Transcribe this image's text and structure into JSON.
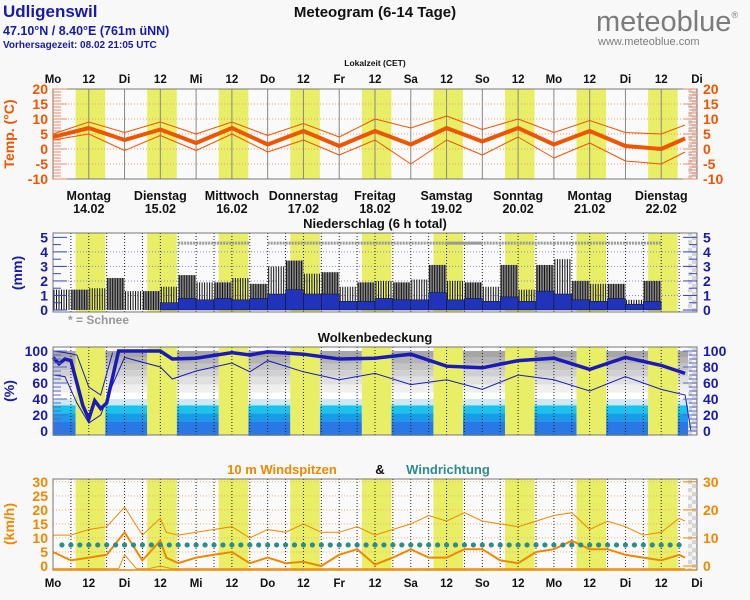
{
  "header": {
    "location": "Udligenswil",
    "coordinates": "47.10°N / 8.40°E (761m üNN)",
    "forecast_time": "Vorhersagezeit: 08.02 21:05 UTC",
    "title": "Meteogram (6-14 Tage)",
    "brand": "meteoblue",
    "brand_mark": "®",
    "brand_url": "www.meteoblue.com",
    "time_zone_label": "Lokalzeit (CET)"
  },
  "time_axis": {
    "top_labels": [
      "Mo",
      "12",
      "Di",
      "12",
      "Mi",
      "12",
      "Do",
      "12",
      "Fr",
      "12",
      "Sa",
      "12",
      "So",
      "12",
      "Mo",
      "12",
      "Di",
      "12",
      "Di"
    ],
    "bottom_labels": [
      "Mo",
      "12",
      "Di",
      "12",
      "Mi",
      "12",
      "Do",
      "12",
      "Fr",
      "12",
      "Sa",
      "12",
      "So",
      "12",
      "Mo",
      "12",
      "Di",
      "12",
      "Di"
    ],
    "days": [
      {
        "name": "Montag",
        "date": "14.02"
      },
      {
        "name": "Dienstag",
        "date": "15.02"
      },
      {
        "name": "Mittwoch",
        "date": "16.02"
      },
      {
        "name": "Donnerstag",
        "date": "17.02"
      },
      {
        "name": "Freitag",
        "date": "18.02"
      },
      {
        "name": "Samstag",
        "date": "19.02"
      },
      {
        "name": "Sonntag",
        "date": "20.02"
      },
      {
        "name": "Montag",
        "date": "21.02"
      },
      {
        "name": "Dienstag",
        "date": "22.02"
      }
    ]
  },
  "colors": {
    "temp": "#ee5500",
    "precip": "#1a1aa8",
    "wind": "#ee8800",
    "winddir": "#2e8b8b",
    "daylight": "#e8ee66",
    "axis_blue": "#1a1aa8"
  },
  "chart_data": [
    {
      "type": "line",
      "title": "",
      "ylabel": "Temp. (°C)",
      "ylim": [
        -10,
        20
      ],
      "yticks": [
        "20",
        "15",
        "10",
        "5",
        "0",
        "-5",
        "-10"
      ],
      "x_unit": "hours from Mo 14.02 00:00",
      "series": [
        {
          "name": "Temperature (mean)",
          "x": [
            0,
            12,
            24,
            36,
            48,
            60,
            72,
            84,
            96,
            108,
            120,
            132,
            144,
            156,
            168,
            180,
            192,
            204,
            212
          ],
          "values": [
            4,
            7,
            3,
            6.5,
            2,
            7,
            1.5,
            6,
            1,
            6,
            1.5,
            7,
            2.5,
            7,
            1.5,
            6,
            1,
            0,
            3.5
          ]
        },
        {
          "name": "Temperature (upper)",
          "x": [
            0,
            12,
            24,
            36,
            48,
            60,
            72,
            84,
            96,
            108,
            120,
            132,
            144,
            156,
            168,
            180,
            192,
            204,
            212
          ],
          "values": [
            5,
            9,
            5.5,
            9,
            5,
            9,
            4.5,
            8.5,
            4,
            10,
            7,
            11,
            6.5,
            10,
            5.5,
            9.5,
            5.5,
            5,
            8
          ]
        },
        {
          "name": "Temperature (lower)",
          "x": [
            0,
            12,
            24,
            36,
            48,
            60,
            72,
            84,
            96,
            108,
            120,
            132,
            144,
            156,
            168,
            180,
            192,
            204,
            212
          ],
          "values": [
            3,
            5,
            -0.5,
            4.5,
            -0.5,
            5,
            -1,
            3,
            -2,
            3,
            -5,
            3,
            -2,
            4,
            -3,
            2,
            -4,
            -5,
            -1
          ]
        }
      ]
    },
    {
      "type": "bar",
      "title": "Niederschlag (6 h total)",
      "ylabel": "(mm)",
      "ylim": [
        0,
        5
      ],
      "yticks": [
        "5",
        "4",
        "3",
        "2",
        "1",
        "0"
      ],
      "note": "* = Schnee",
      "x_unit": "6h blocks from Mo 14.02 00:00",
      "series": [
        {
          "name": "Precipitation (spread max)",
          "values": [
            1.4,
            1.4,
            1.5,
            2.2,
            1.3,
            1.3,
            1.6,
            2.4,
            1.9,
            1.9,
            2.2,
            1.8,
            3.0,
            3.4,
            2.5,
            2.6,
            1.6,
            1.9,
            2.0,
            1.9,
            2.1,
            3.1,
            2.0,
            1.9,
            1.6,
            3.1,
            1.4,
            3.1,
            3.5,
            2.0,
            1.8,
            1.8,
            0.7,
            2.0
          ]
        },
        {
          "name": "Precipitation (expected)",
          "values": [
            0,
            0,
            0,
            0,
            0,
            0,
            0.5,
            0.8,
            0.7,
            0.8,
            0.7,
            0.8,
            1.1,
            1.4,
            1.1,
            1.1,
            0.6,
            0.6,
            0.8,
            0.7,
            0.7,
            1.2,
            0.7,
            0.8,
            0.6,
            0.9,
            0.6,
            1.3,
            1.1,
            0.7,
            0.6,
            0.8,
            0.4,
            0.6
          ]
        }
      ],
      "snow_ranges_hours": [
        [
          42,
          66
        ],
        [
          72,
          168
        ],
        [
          132,
          144
        ],
        [
          168,
          204
        ]
      ]
    },
    {
      "type": "line",
      "title": "Wolkenbedeckung",
      "ylabel": "(%)",
      "ylim": [
        0,
        100
      ],
      "yticks": [
        "100",
        "80",
        "60",
        "40",
        "20",
        "0"
      ],
      "x_unit": "hours from Mo 14.02 00:00",
      "series": [
        {
          "name": "Total cloud cover",
          "x": [
            0,
            2,
            4,
            6,
            8,
            10,
            12,
            14,
            16,
            18,
            22,
            24,
            36,
            40,
            48,
            60,
            66,
            72,
            84,
            96,
            108,
            120,
            132,
            144,
            156,
            168,
            180,
            192,
            204,
            212
          ],
          "values": [
            92,
            84,
            90,
            88,
            60,
            32,
            15,
            38,
            28,
            35,
            100,
            100,
            100,
            90,
            91,
            98,
            95,
            99,
            96,
            90,
            91,
            96,
            81,
            79,
            88,
            91,
            77,
            92,
            82,
            72
          ]
        },
        {
          "name": "Cloud cover (lower)",
          "x": [
            0,
            4,
            8,
            12,
            16,
            20,
            24,
            36,
            40,
            48,
            60,
            66,
            72,
            84,
            96,
            108,
            120,
            132,
            144,
            156,
            168,
            180,
            192,
            204,
            212,
            214
          ],
          "values": [
            70,
            68,
            35,
            10,
            20,
            58,
            92,
            80,
            65,
            75,
            85,
            74,
            88,
            74,
            64,
            72,
            58,
            64,
            52,
            70,
            64,
            50,
            68,
            52,
            45,
            0
          ]
        },
        {
          "name": "Cloud cover (upper)",
          "x": [
            0,
            4,
            8,
            12,
            16,
            20
          ],
          "values": [
            100,
            98,
            95,
            55,
            45,
            98
          ]
        }
      ],
      "layer_bands": [
        "high",
        "mid",
        "low",
        "very low"
      ]
    },
    {
      "type": "line",
      "title": "10 m Windspitzen & Windrichtung",
      "ylabel": "(km/h)",
      "ylim": [
        0,
        30
      ],
      "yticks": [
        "30",
        "25",
        "20",
        "15",
        "10",
        "5",
        "0"
      ],
      "right_yticks": [
        "30",
        "20",
        "10",
        "0"
      ],
      "x_unit": "hours from Mo 14.02 00:00",
      "series": [
        {
          "name": "Wind gusts (mean)",
          "x": [
            0,
            6,
            12,
            18,
            24,
            30,
            36,
            38,
            42,
            48,
            54,
            60,
            66,
            72,
            78,
            84,
            90,
            96,
            102,
            108,
            114,
            120,
            126,
            132,
            138,
            144,
            150,
            156,
            162,
            168,
            174,
            180,
            186,
            192,
            198,
            204,
            210,
            212
          ],
          "values": [
            5,
            2,
            3,
            4,
            12,
            2,
            9,
            3,
            1,
            3,
            4,
            5,
            1,
            3,
            1,
            1.5,
            0,
            4,
            6,
            0.5,
            3,
            6,
            3,
            3,
            6,
            6,
            2,
            1,
            5,
            6,
            9,
            6,
            6,
            4,
            3,
            2,
            4,
            3
          ]
        },
        {
          "name": "Wind gusts (upper)",
          "x": [
            0,
            6,
            12,
            18,
            24,
            30,
            36,
            38,
            42,
            48,
            54,
            60,
            66,
            72,
            78,
            84,
            90,
            96,
            102,
            108,
            114,
            120,
            126,
            132,
            138,
            144,
            150,
            156,
            162,
            168,
            174,
            180,
            186,
            192,
            198,
            204,
            210,
            212
          ],
          "values": [
            11,
            11,
            13,
            14,
            21,
            11,
            17,
            12,
            11,
            12,
            13,
            14,
            10,
            13,
            12,
            15,
            12,
            12,
            14,
            11,
            13,
            15,
            18,
            16,
            19,
            16,
            15,
            14,
            16,
            18,
            19,
            13,
            16,
            14,
            11,
            12,
            17,
            16
          ]
        },
        {
          "name": "Wind gusts (lower)",
          "x": [
            0,
            18,
            22,
            24,
            28,
            32,
            36,
            40,
            42,
            212
          ],
          "values": [
            -1,
            -1,
            -1,
            4,
            -1,
            -1,
            0,
            -1,
            -1,
            -1
          ]
        },
        {
          "name": "Wind direction",
          "values": "dots at ~7 km/h level every 3h"
        }
      ]
    }
  ]
}
